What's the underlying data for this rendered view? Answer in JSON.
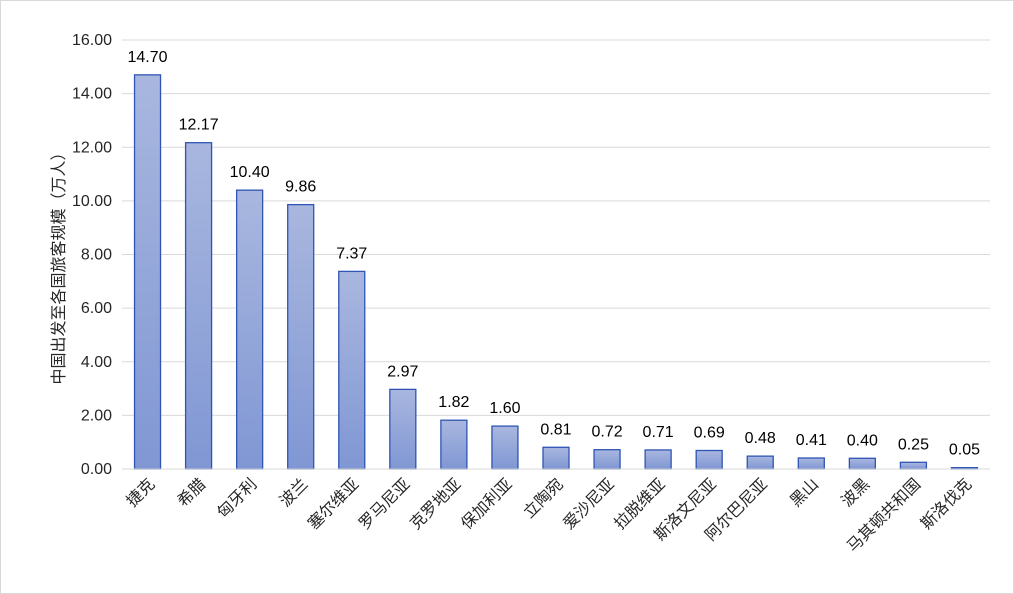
{
  "chart_data": {
    "type": "bar",
    "title": "",
    "xlabel": "",
    "ylabel": "中国出发至各国旅客规模（万人）",
    "ylim": [
      0,
      16
    ],
    "yticks": [
      "0.00",
      "2.00",
      "4.00",
      "6.00",
      "8.00",
      "10.00",
      "12.00",
      "14.00",
      "16.00"
    ],
    "grid": true,
    "legend": "none",
    "colors": {
      "bar_top": "#a9b7df",
      "bar_bottom": "#8097d4",
      "bar_stroke": "#2f55b4",
      "grid": "#d9d9d9"
    },
    "categories": [
      "捷克",
      "希腊",
      "匈牙利",
      "波兰",
      "塞尔维亚",
      "罗马尼亚",
      "克罗地亚",
      "保加利亚",
      "立陶宛",
      "爱沙尼亚",
      "拉脱维亚",
      "斯洛文尼亚",
      "阿尔巴尼亚",
      "黑山",
      "波黑",
      "马其顿共和国",
      "斯洛伐克"
    ],
    "values": [
      14.7,
      12.17,
      10.4,
      9.86,
      7.37,
      2.97,
      1.82,
      1.6,
      0.81,
      0.72,
      0.71,
      0.69,
      0.48,
      0.41,
      0.4,
      0.25,
      0.05
    ],
    "data_labels": [
      "14.70",
      "12.17",
      "10.40",
      "9.86",
      "7.37",
      "2.97",
      "1.82",
      "1.60",
      "0.81",
      "0.72",
      "0.71",
      "0.69",
      "0.48",
      "0.41",
      "0.40",
      "0.25",
      "0.05"
    ]
  }
}
